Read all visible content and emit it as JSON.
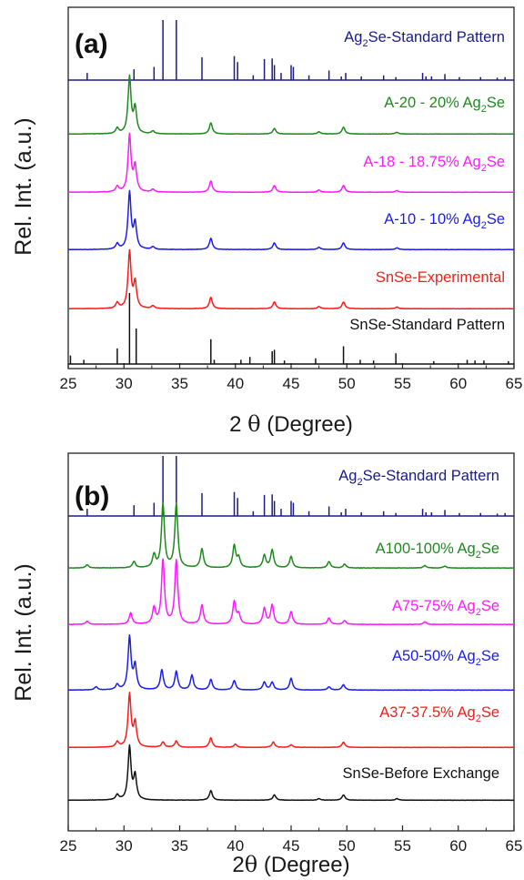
{
  "colors": {
    "navy": "#1a1a8c",
    "green": "#1e8a1e",
    "magenta": "#ff19ff",
    "blue": "#1c1cf0",
    "red": "#ff1a1a",
    "black": "#111111"
  },
  "chart_data": [
    {
      "type": "line",
      "panel_label": "(a)",
      "xlabel_prefix": "2 ",
      "xlabel_symbol": "θ",
      "xlabel_suffix": " (Degree)",
      "ylabel": "Rel. Int. (a.u.)",
      "xlim": [
        25,
        65
      ],
      "xticks": [
        "25",
        "30",
        "35",
        "40",
        "45",
        "50",
        "55",
        "60",
        "65"
      ],
      "series": [
        {
          "label_pre": "Ag",
          "label_sub": "2",
          "label_post": "Se-Standard Pattern",
          "color": "#1a1a8c",
          "style": "sticks",
          "peaks": [
            [
              26.7,
              0.12
            ],
            [
              30.9,
              0.18
            ],
            [
              32.7,
              0.22
            ],
            [
              33.5,
              1.0
            ],
            [
              34.7,
              1.0
            ],
            [
              37.0,
              0.38
            ],
            [
              39.9,
              0.4
            ],
            [
              40.2,
              0.3
            ],
            [
              41.6,
              0.08
            ],
            [
              42.6,
              0.35
            ],
            [
              43.3,
              0.36
            ],
            [
              43.5,
              0.25
            ],
            [
              44.1,
              0.12
            ],
            [
              45.0,
              0.25
            ],
            [
              45.2,
              0.22
            ],
            [
              46.6,
              0.08
            ],
            [
              48.4,
              0.16
            ],
            [
              49.5,
              0.06
            ],
            [
              49.9,
              0.12
            ],
            [
              51.3,
              0.06
            ],
            [
              53.3,
              0.08
            ],
            [
              54.4,
              0.05
            ],
            [
              56.8,
              0.12
            ],
            [
              57.1,
              0.06
            ],
            [
              57.6,
              0.06
            ],
            [
              58.8,
              0.1
            ],
            [
              60.1,
              0.05
            ],
            [
              62.0,
              0.05
            ],
            [
              63.5,
              0.04
            ],
            [
              64.2,
              0.05
            ]
          ]
        },
        {
          "label_pre": "A-20 - 20% Ag",
          "label_sub": "2",
          "label_post": "Se",
          "color": "#1e8a1e",
          "style": "profile",
          "peaks": [
            [
              29.4,
              0.1
            ],
            [
              30.5,
              1.0
            ],
            [
              31.0,
              0.45
            ],
            [
              32.6,
              0.05
            ],
            [
              37.8,
              0.2
            ],
            [
              43.5,
              0.1
            ],
            [
              47.5,
              0.04
            ],
            [
              49.7,
              0.12
            ],
            [
              54.5,
              0.03
            ]
          ]
        },
        {
          "label_pre": "A-18 - 18.75% Ag",
          "label_sub": "2",
          "label_post": "Se",
          "color": "#ff19ff",
          "style": "profile",
          "peaks": [
            [
              29.4,
              0.1
            ],
            [
              30.5,
              1.0
            ],
            [
              31.0,
              0.45
            ],
            [
              32.6,
              0.05
            ],
            [
              37.8,
              0.2
            ],
            [
              43.5,
              0.12
            ],
            [
              47.5,
              0.04
            ],
            [
              49.7,
              0.12
            ],
            [
              54.5,
              0.03
            ]
          ]
        },
        {
          "label_pre": "A-10 - 10% Ag",
          "label_sub": "2",
          "label_post": "Se",
          "color": "#1c1cf0",
          "style": "profile",
          "peaks": [
            [
              29.4,
              0.1
            ],
            [
              30.5,
              1.0
            ],
            [
              31.0,
              0.45
            ],
            [
              32.6,
              0.05
            ],
            [
              37.8,
              0.2
            ],
            [
              43.5,
              0.12
            ],
            [
              47.5,
              0.04
            ],
            [
              49.7,
              0.12
            ],
            [
              54.5,
              0.03
            ]
          ]
        },
        {
          "label_pre": "SnSe-Experimental",
          "label_sub": "",
          "label_post": "",
          "color": "#ff1a1a",
          "style": "profile",
          "peaks": [
            [
              29.4,
              0.1
            ],
            [
              30.5,
              1.0
            ],
            [
              31.0,
              0.45
            ],
            [
              32.6,
              0.05
            ],
            [
              37.8,
              0.2
            ],
            [
              43.5,
              0.12
            ],
            [
              47.5,
              0.04
            ],
            [
              49.7,
              0.12
            ],
            [
              54.5,
              0.03
            ]
          ]
        },
        {
          "label_pre": "SnSe-Standard Pattern",
          "label_sub": "",
          "label_post": "",
          "color": "#111111",
          "style": "sticks",
          "peaks": [
            [
              25.2,
              0.12
            ],
            [
              26.4,
              0.06
            ],
            [
              29.4,
              0.22
            ],
            [
              30.5,
              1.0
            ],
            [
              31.1,
              0.5
            ],
            [
              37.8,
              0.35
            ],
            [
              38.1,
              0.06
            ],
            [
              40.5,
              0.06
            ],
            [
              41.3,
              0.1
            ],
            [
              43.3,
              0.18
            ],
            [
              43.5,
              0.2
            ],
            [
              44.4,
              0.05
            ],
            [
              47.2,
              0.08
            ],
            [
              49.7,
              0.25
            ],
            [
              51.2,
              0.06
            ],
            [
              52.4,
              0.05
            ],
            [
              54.4,
              0.15
            ],
            [
              57.8,
              0.04
            ],
            [
              60.8,
              0.06
            ],
            [
              61.5,
              0.05
            ],
            [
              62.3,
              0.05
            ],
            [
              64.5,
              0.04
            ]
          ]
        }
      ]
    },
    {
      "type": "line",
      "panel_label": "(b)",
      "xlabel_prefix": "2",
      "xlabel_symbol": "θ",
      "xlabel_suffix": " (Degree)",
      "ylabel": "Rel. Int. (a.u.)",
      "xlim": [
        25,
        65
      ],
      "xticks": [
        "25",
        "30",
        "35",
        "40",
        "45",
        "50",
        "55",
        "60",
        "65"
      ],
      "series": [
        {
          "label_pre": "Ag",
          "label_sub": "2",
          "label_post": "Se-Standard Pattern",
          "color": "#1a1a8c",
          "style": "sticks",
          "peaks": [
            [
              26.7,
              0.12
            ],
            [
              30.9,
              0.18
            ],
            [
              32.7,
              0.22
            ],
            [
              33.5,
              1.0
            ],
            [
              34.7,
              1.0
            ],
            [
              37.0,
              0.38
            ],
            [
              39.9,
              0.4
            ],
            [
              40.2,
              0.3
            ],
            [
              41.6,
              0.08
            ],
            [
              42.6,
              0.35
            ],
            [
              43.3,
              0.36
            ],
            [
              43.5,
              0.25
            ],
            [
              44.1,
              0.12
            ],
            [
              45.0,
              0.25
            ],
            [
              45.2,
              0.22
            ],
            [
              46.6,
              0.08
            ],
            [
              48.4,
              0.16
            ],
            [
              49.5,
              0.06
            ],
            [
              49.9,
              0.12
            ],
            [
              51.3,
              0.06
            ],
            [
              53.3,
              0.08
            ],
            [
              54.4,
              0.05
            ],
            [
              56.8,
              0.12
            ],
            [
              57.1,
              0.06
            ],
            [
              57.6,
              0.06
            ],
            [
              58.8,
              0.1
            ],
            [
              60.1,
              0.05
            ],
            [
              62.0,
              0.05
            ],
            [
              63.5,
              0.04
            ],
            [
              64.2,
              0.05
            ]
          ]
        },
        {
          "label_pre": "A100-100% Ag",
          "label_sub": "2",
          "label_post": "Se",
          "color": "#1e8a1e",
          "style": "profile",
          "peaks": [
            [
              26.7,
              0.05
            ],
            [
              30.9,
              0.1
            ],
            [
              32.7,
              0.2
            ],
            [
              33.5,
              1.0
            ],
            [
              34.7,
              1.0
            ],
            [
              37.0,
              0.3
            ],
            [
              39.9,
              0.35
            ],
            [
              40.3,
              0.15
            ],
            [
              42.6,
              0.2
            ],
            [
              43.3,
              0.28
            ],
            [
              45.0,
              0.18
            ],
            [
              48.4,
              0.1
            ],
            [
              49.8,
              0.06
            ],
            [
              57.0,
              0.04
            ],
            [
              58.8,
              0.03
            ]
          ]
        },
        {
          "label_pre": "A75-75% Ag",
          "label_sub": "2",
          "label_post": "Se",
          "color": "#ff19ff",
          "style": "profile",
          "peaks": [
            [
              26.7,
              0.05
            ],
            [
              30.6,
              0.18
            ],
            [
              32.7,
              0.25
            ],
            [
              33.5,
              1.0
            ],
            [
              34.7,
              1.0
            ],
            [
              37.0,
              0.3
            ],
            [
              39.9,
              0.35
            ],
            [
              40.3,
              0.15
            ],
            [
              42.6,
              0.25
            ],
            [
              43.3,
              0.3
            ],
            [
              45.0,
              0.2
            ],
            [
              48.4,
              0.1
            ],
            [
              49.8,
              0.06
            ],
            [
              57.0,
              0.04
            ]
          ]
        },
        {
          "label_pre": "A50-50% Ag",
          "label_sub": "2",
          "label_post": "Se",
          "color": "#1c1cf0",
          "style": "profile",
          "peaks": [
            [
              27.5,
              0.06
            ],
            [
              29.4,
              0.1
            ],
            [
              30.5,
              1.0
            ],
            [
              31.0,
              0.45
            ],
            [
              33.4,
              0.38
            ],
            [
              34.7,
              0.35
            ],
            [
              36.1,
              0.28
            ],
            [
              37.8,
              0.2
            ],
            [
              39.9,
              0.18
            ],
            [
              42.6,
              0.15
            ],
            [
              43.3,
              0.15
            ],
            [
              45.0,
              0.22
            ],
            [
              48.4,
              0.06
            ],
            [
              49.7,
              0.1
            ]
          ]
        },
        {
          "label_pre": "A37-37.5% Ag",
          "label_sub": "2",
          "label_post": "Se",
          "color": "#ff1a1a",
          "style": "profile",
          "peaks": [
            [
              29.4,
              0.1
            ],
            [
              30.5,
              1.0
            ],
            [
              31.0,
              0.45
            ],
            [
              33.5,
              0.1
            ],
            [
              34.7,
              0.12
            ],
            [
              37.8,
              0.18
            ],
            [
              40.0,
              0.06
            ],
            [
              43.4,
              0.1
            ],
            [
              45.0,
              0.05
            ],
            [
              49.7,
              0.1
            ]
          ]
        },
        {
          "label_pre": "SnSe-Before Exchange",
          "label_sub": "",
          "label_post": "",
          "color": "#111111",
          "style": "profile",
          "peaks": [
            [
              29.4,
              0.1
            ],
            [
              30.5,
              1.0
            ],
            [
              31.0,
              0.45
            ],
            [
              37.8,
              0.18
            ],
            [
              43.5,
              0.1
            ],
            [
              47.5,
              0.03
            ],
            [
              49.7,
              0.1
            ],
            [
              54.5,
              0.03
            ]
          ]
        }
      ]
    }
  ]
}
